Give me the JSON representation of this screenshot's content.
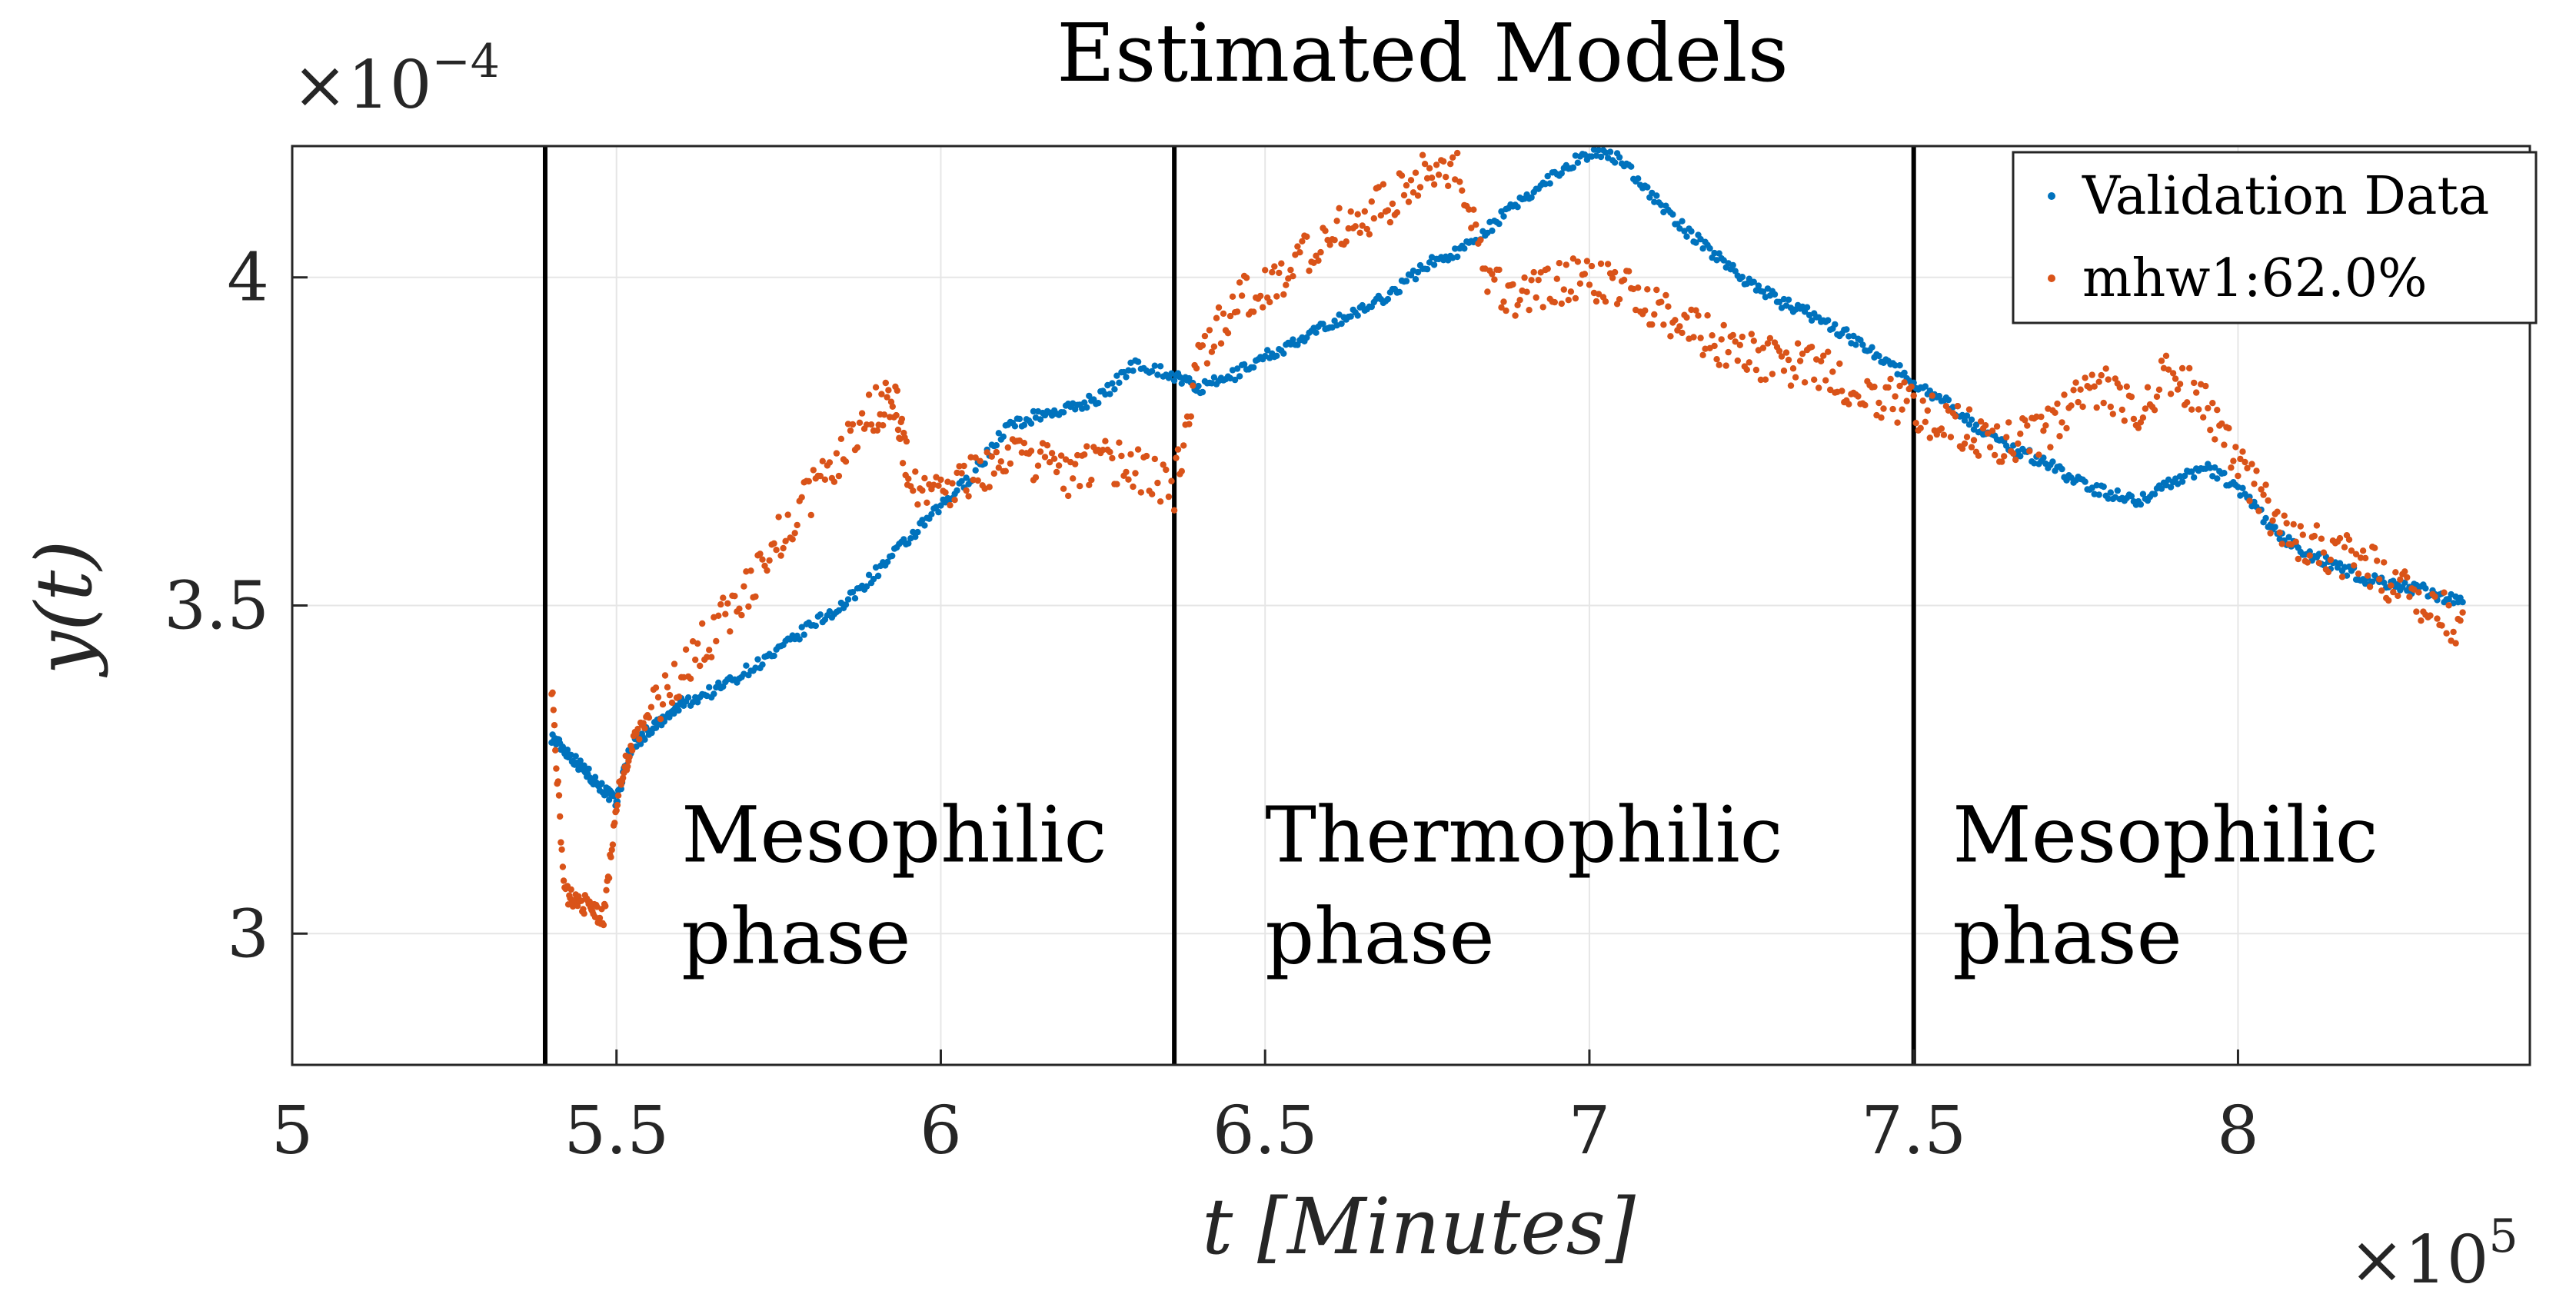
{
  "chart_data": {
    "type": "scatter",
    "title": "Estimated Models",
    "xlabel": "t [Minutes]",
    "ylabel": "y(t)",
    "x_exponent_label": "×10",
    "x_exponent_power": "5",
    "y_exponent_label": "×10",
    "y_exponent_power": "−4",
    "xlim": [
      5,
      8.45
    ],
    "ylim": [
      2.8,
      4.2
    ],
    "x_ticks": [
      5,
      5.5,
      6,
      6.5,
      7,
      7.5,
      8
    ],
    "x_tick_labels": [
      "5",
      "5.5",
      "6",
      "6.5",
      "7",
      "7.5",
      "8"
    ],
    "y_ticks": [
      3,
      3.5,
      4
    ],
    "y_tick_labels": [
      "3",
      "3.5",
      "4"
    ],
    "grid": true,
    "legend_position": "top-right",
    "series": [
      {
        "name": "Validation Data",
        "color": "#0072BD",
        "marker": "dot",
        "points": [
          [
            5.4,
            3.3
          ],
          [
            5.42,
            3.28
          ],
          [
            5.44,
            3.26
          ],
          [
            5.46,
            3.24
          ],
          [
            5.48,
            3.22
          ],
          [
            5.5,
            3.2
          ],
          [
            5.52,
            3.28
          ],
          [
            5.55,
            3.31
          ],
          [
            5.58,
            3.33
          ],
          [
            5.6,
            3.35
          ],
          [
            5.65,
            3.37
          ],
          [
            5.7,
            3.4
          ],
          [
            5.75,
            3.43
          ],
          [
            5.8,
            3.47
          ],
          [
            5.85,
            3.5
          ],
          [
            5.9,
            3.55
          ],
          [
            5.95,
            3.6
          ],
          [
            6.0,
            3.65
          ],
          [
            6.05,
            3.7
          ],
          [
            6.1,
            3.77
          ],
          [
            6.15,
            3.79
          ],
          [
            6.2,
            3.8
          ],
          [
            6.25,
            3.82
          ],
          [
            6.3,
            3.87
          ],
          [
            6.36,
            3.85
          ],
          [
            6.4,
            3.83
          ],
          [
            6.45,
            3.85
          ],
          [
            6.5,
            3.88
          ],
          [
            6.55,
            3.9
          ],
          [
            6.6,
            3.93
          ],
          [
            6.65,
            3.95
          ],
          [
            6.7,
            3.98
          ],
          [
            6.75,
            4.02
          ],
          [
            6.8,
            4.04
          ],
          [
            6.85,
            4.08
          ],
          [
            6.9,
            4.12
          ],
          [
            6.95,
            4.16
          ],
          [
            7.0,
            4.19
          ],
          [
            7.05,
            4.18
          ],
          [
            7.1,
            4.12
          ],
          [
            7.15,
            4.07
          ],
          [
            7.2,
            4.03
          ],
          [
            7.25,
            3.99
          ],
          [
            7.3,
            3.96
          ],
          [
            7.35,
            3.94
          ],
          [
            7.4,
            3.91
          ],
          [
            7.45,
            3.88
          ],
          [
            7.5,
            3.84
          ],
          [
            7.55,
            3.81
          ],
          [
            7.6,
            3.77
          ],
          [
            7.65,
            3.74
          ],
          [
            7.7,
            3.72
          ],
          [
            7.75,
            3.69
          ],
          [
            7.8,
            3.67
          ],
          [
            7.85,
            3.66
          ],
          [
            7.9,
            3.69
          ],
          [
            7.95,
            3.71
          ],
          [
            8.0,
            3.68
          ],
          [
            8.05,
            3.62
          ],
          [
            8.1,
            3.58
          ],
          [
            8.15,
            3.56
          ],
          [
            8.2,
            3.54
          ],
          [
            8.25,
            3.53
          ],
          [
            8.3,
            3.52
          ],
          [
            8.35,
            3.5
          ]
        ]
      },
      {
        "name": "mhw1:62.0%",
        "color": "#D95319",
        "marker": "dot",
        "points": [
          [
            5.4,
            3.38
          ],
          [
            5.42,
            3.06
          ],
          [
            5.44,
            3.05
          ],
          [
            5.46,
            3.04
          ],
          [
            5.48,
            3.02
          ],
          [
            5.5,
            3.2
          ],
          [
            5.52,
            3.28
          ],
          [
            5.55,
            3.33
          ],
          [
            5.6,
            3.4
          ],
          [
            5.65,
            3.46
          ],
          [
            5.7,
            3.52
          ],
          [
            5.75,
            3.6
          ],
          [
            5.8,
            3.67
          ],
          [
            5.85,
            3.74
          ],
          [
            5.9,
            3.8
          ],
          [
            5.93,
            3.82
          ],
          [
            5.95,
            3.7
          ],
          [
            6.0,
            3.66
          ],
          [
            6.05,
            3.7
          ],
          [
            6.1,
            3.73
          ],
          [
            6.15,
            3.72
          ],
          [
            6.2,
            3.7
          ],
          [
            6.25,
            3.72
          ],
          [
            6.3,
            3.71
          ],
          [
            6.36,
            3.68
          ],
          [
            6.4,
            3.88
          ],
          [
            6.45,
            3.96
          ],
          [
            6.5,
            3.98
          ],
          [
            6.55,
            4.03
          ],
          [
            6.6,
            4.07
          ],
          [
            6.65,
            4.09
          ],
          [
            6.7,
            4.12
          ],
          [
            6.75,
            4.16
          ],
          [
            6.8,
            4.17
          ],
          [
            6.85,
            3.98
          ],
          [
            6.9,
            3.97
          ],
          [
            6.95,
            3.99
          ],
          [
            7.0,
            4.0
          ],
          [
            7.05,
            3.98
          ],
          [
            7.1,
            3.96
          ],
          [
            7.15,
            3.93
          ],
          [
            7.2,
            3.9
          ],
          [
            7.25,
            3.88
          ],
          [
            7.3,
            3.87
          ],
          [
            7.35,
            3.86
          ],
          [
            7.4,
            3.84
          ],
          [
            7.45,
            3.82
          ],
          [
            7.5,
            3.8
          ],
          [
            7.55,
            3.78
          ],
          [
            7.6,
            3.76
          ],
          [
            7.65,
            3.75
          ],
          [
            7.7,
            3.76
          ],
          [
            7.75,
            3.82
          ],
          [
            7.8,
            3.83
          ],
          [
            7.85,
            3.8
          ],
          [
            7.9,
            3.86
          ],
          [
            7.95,
            3.8
          ],
          [
            8.0,
            3.72
          ],
          [
            8.05,
            3.64
          ],
          [
            8.1,
            3.6
          ],
          [
            8.15,
            3.58
          ],
          [
            8.2,
            3.56
          ],
          [
            8.25,
            3.53
          ],
          [
            8.3,
            3.5
          ],
          [
            8.35,
            3.46
          ]
        ]
      }
    ],
    "phase_boundaries": [
      5.39,
      6.36,
      7.5
    ],
    "annotations": [
      {
        "line1": "Mesophilic",
        "line2": "phase"
      },
      {
        "line1": "Thermophilic",
        "line2": "phase"
      },
      {
        "line1": "Mesophilic",
        "line2": "phase"
      }
    ]
  }
}
